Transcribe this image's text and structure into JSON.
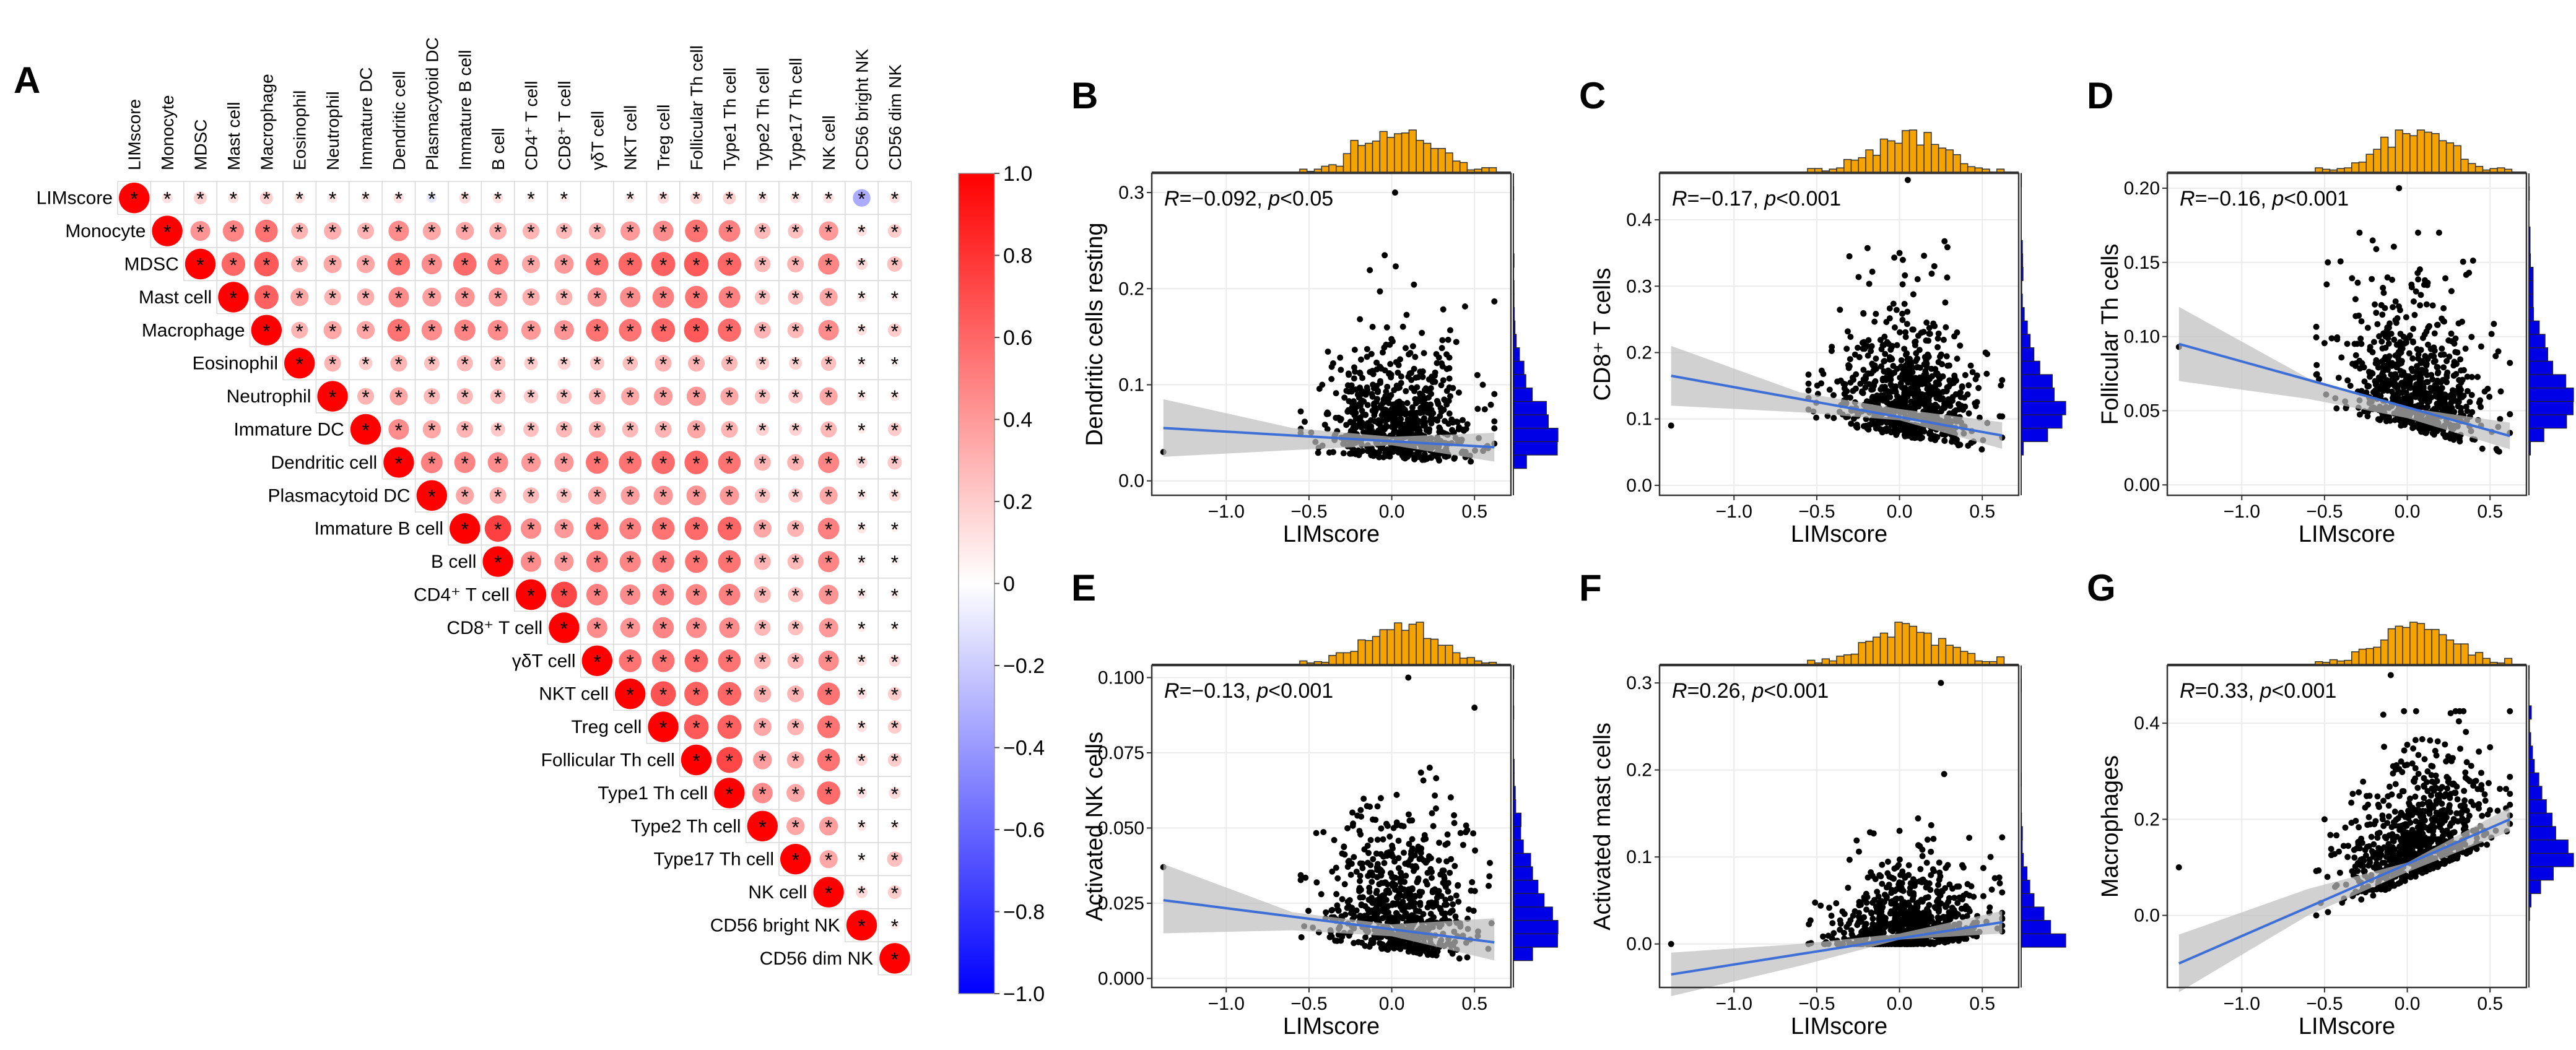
{
  "figure": {
    "panel_labels": [
      "A",
      "B",
      "C",
      "D",
      "E",
      "F",
      "G"
    ]
  },
  "chart_data": [
    {
      "panel": "A",
      "type": "heatmap",
      "variables": [
        "LIMscore",
        "Monocyte",
        "MDSC",
        "Mast cell",
        "Macrophage",
        "Eosinophil",
        "Neutrophil",
        "Immature DC",
        "Dendritic cell",
        "Plasmacytoid DC",
        "Immature B cell",
        "B cell",
        "CD4⁺ T cell",
        "CD8⁺ T cell",
        "γδT cell",
        "NKT cell",
        "Treg cell",
        "Follicular Th cell",
        "Type1 Th cell",
        "Type2 Th cell",
        "Type17 Th cell",
        "NK cell",
        "CD56 bright NK",
        "CD56 dim NK"
      ],
      "rows_upper": [
        [
          1.0,
          0.12,
          0.18,
          0.12,
          0.18,
          0.12,
          0.1,
          0.1,
          0.12,
          -0.1,
          0.14,
          0.12,
          0.08,
          0.08,
          0.0,
          0.1,
          0.14,
          0.16,
          0.18,
          0.12,
          0.12,
          0.12,
          -0.33,
          0.12
        ],
        [
          1.0,
          0.42,
          0.48,
          0.55,
          0.3,
          0.32,
          0.3,
          0.45,
          0.35,
          0.35,
          0.32,
          0.3,
          0.28,
          0.3,
          0.4,
          0.45,
          0.55,
          0.5,
          0.28,
          0.25,
          0.4,
          0.12,
          0.2
        ],
        [
          1.0,
          0.6,
          0.65,
          0.3,
          0.35,
          0.35,
          0.55,
          0.45,
          0.58,
          0.48,
          0.35,
          0.4,
          0.55,
          0.6,
          0.62,
          0.65,
          0.6,
          0.28,
          0.3,
          0.48,
          0.15,
          0.25
        ],
        [
          1.0,
          0.62,
          0.35,
          0.3,
          0.32,
          0.45,
          0.38,
          0.42,
          0.38,
          0.32,
          0.3,
          0.4,
          0.45,
          0.5,
          0.55,
          0.5,
          0.25,
          0.25,
          0.35,
          0.1,
          0.08
        ],
        [
          1.0,
          0.3,
          0.35,
          0.35,
          0.55,
          0.45,
          0.48,
          0.45,
          0.4,
          0.42,
          0.55,
          0.55,
          0.6,
          0.65,
          0.58,
          0.3,
          0.28,
          0.45,
          0.12,
          0.2
        ],
        [
          1.0,
          0.3,
          0.2,
          0.3,
          0.25,
          0.28,
          0.25,
          0.2,
          0.18,
          0.22,
          0.25,
          0.3,
          0.3,
          0.28,
          0.2,
          0.18,
          0.25,
          0.08,
          0.06
        ],
        [
          1.0,
          0.3,
          0.35,
          0.28,
          0.28,
          0.25,
          0.22,
          0.25,
          0.3,
          0.35,
          0.38,
          0.4,
          0.35,
          0.25,
          0.22,
          0.35,
          0.1,
          0.1
        ],
        [
          1.0,
          0.45,
          0.35,
          0.3,
          0.22,
          0.25,
          0.28,
          0.3,
          0.28,
          0.3,
          0.35,
          0.3,
          0.18,
          0.18,
          0.28,
          0.08,
          0.2
        ],
        [
          1.0,
          0.5,
          0.48,
          0.45,
          0.4,
          0.4,
          0.55,
          0.55,
          0.58,
          0.6,
          0.55,
          0.3,
          0.3,
          0.48,
          0.15,
          0.22
        ],
        [
          1.0,
          0.35,
          0.3,
          0.28,
          0.25,
          0.35,
          0.38,
          0.4,
          0.42,
          0.4,
          0.25,
          0.22,
          0.35,
          0.1,
          0.15
        ],
        [
          1.0,
          0.75,
          0.45,
          0.4,
          0.55,
          0.5,
          0.55,
          0.58,
          0.6,
          0.35,
          0.3,
          0.5,
          0.1,
          0.06
        ],
        [
          1.0,
          0.45,
          0.4,
          0.5,
          0.48,
          0.52,
          0.55,
          0.55,
          0.3,
          0.28,
          0.48,
          0.08,
          0.06
        ],
        [
          1.0,
          0.72,
          0.5,
          0.45,
          0.5,
          0.48,
          0.5,
          0.3,
          0.25,
          0.42,
          0.1,
          0.08
        ],
        [
          1.0,
          0.45,
          0.42,
          0.48,
          0.45,
          0.45,
          0.28,
          0.25,
          0.4,
          0.08,
          0.06
        ],
        [
          1.0,
          0.55,
          0.55,
          0.58,
          0.55,
          0.3,
          0.28,
          0.45,
          0.12,
          0.15
        ],
        [
          1.0,
          0.68,
          0.62,
          0.6,
          0.32,
          0.3,
          0.55,
          0.12,
          0.2
        ],
        [
          1.0,
          0.65,
          0.62,
          0.35,
          0.3,
          0.55,
          0.12,
          0.2
        ],
        [
          1.0,
          0.72,
          0.38,
          0.32,
          0.55,
          0.15,
          0.2
        ],
        [
          1.0,
          0.45,
          0.35,
          0.58,
          0.12,
          0.15
        ],
        [
          1.0,
          0.35,
          0.38,
          0.1,
          0.08
        ],
        [
          1.0,
          0.35,
          0.06,
          0.25
        ],
        [
          1.0,
          0.15,
          0.2
        ],
        [
          1.0,
          0.08
        ],
        [
          1.0
        ]
      ],
      "cell_marker": "*",
      "color_scale": {
        "low": "#0000FF",
        "mid": "#FFFFFF",
        "high": "#FF0000"
      },
      "colorbar_ticks": [
        "1.0",
        "0.8",
        "0.6",
        "0.4",
        "0.2",
        "0",
        "−0.2",
        "−0.4",
        "−0.6",
        "−0.8",
        "−1.0"
      ],
      "colorbar_range": [
        -1.0,
        1.0
      ]
    },
    {
      "panel": "B",
      "type": "scatter",
      "xlabel": "LIMscore",
      "ylabel": "Dendritic cells resting",
      "annotation": {
        "r_symbol": "R",
        "rest": "=−0.092, ",
        "p_symbol": "p",
        "p_rest": "<0.05"
      },
      "xlim": [
        -1.45,
        0.72
      ],
      "ylim": [
        -0.015,
        0.32
      ],
      "xticks": [
        -1.0,
        -0.5,
        0.0,
        0.5
      ],
      "xtick_labels": [
        "−1.0",
        "−0.5",
        "0.0",
        "0.5"
      ],
      "yticks": [
        0.0,
        0.1,
        0.2,
        0.3
      ],
      "ytick_labels": [
        "0.0",
        "0.1",
        "0.2",
        "0.3"
      ],
      "fit_line": {
        "x": [
          -1.38,
          0.62
        ],
        "y": [
          0.055,
          0.035
        ]
      },
      "ci_band": {
        "x": [
          -1.38,
          -0.6,
          0.0,
          0.62
        ],
        "upper": [
          0.085,
          0.055,
          0.046,
          0.05
        ],
        "lower": [
          0.025,
          0.032,
          0.037,
          0.02
        ]
      },
      "y_min": 0.0,
      "y_max": 0.3,
      "y_typical": 0.04,
      "y_spread": 0.05,
      "n_points": 700,
      "outliers": [
        {
          "x": -1.38,
          "y": 0.03
        },
        {
          "x": 0.02,
          "y": 0.3
        },
        {
          "x": -0.42,
          "y": 0.1
        },
        {
          "x": 0.55,
          "y": 0.1
        }
      ]
    },
    {
      "panel": "C",
      "type": "scatter",
      "xlabel": "LIMscore",
      "ylabel": "CD8⁺ T cells",
      "annotation": {
        "r_symbol": "R",
        "rest": "=−0.17, ",
        "p_symbol": "p",
        "p_rest": "<0.001"
      },
      "xlim": [
        -1.45,
        0.72
      ],
      "ylim": [
        -0.015,
        0.47
      ],
      "xticks": [
        -1.0,
        -0.5,
        0.0,
        0.5
      ],
      "xtick_labels": [
        "−1.0",
        "−0.5",
        "0.0",
        "0.5"
      ],
      "yticks": [
        0.0,
        0.1,
        0.2,
        0.3,
        0.4
      ],
      "ytick_labels": [
        "0.0",
        "0.1",
        "0.2",
        "0.3",
        "0.4"
      ],
      "fit_line": {
        "x": [
          -1.38,
          0.62
        ],
        "y": [
          0.165,
          0.075
        ]
      },
      "ci_band": {
        "x": [
          -1.38,
          -0.6,
          0.0,
          0.62
        ],
        "upper": [
          0.21,
          0.14,
          0.115,
          0.095
        ],
        "lower": [
          0.12,
          0.11,
          0.098,
          0.055
        ]
      },
      "y_min": 0.0,
      "y_max": 0.46,
      "y_typical": 0.09,
      "y_spread": 0.08,
      "n_points": 750,
      "outliers": [
        {
          "x": -1.38,
          "y": 0.09
        },
        {
          "x": 0.05,
          "y": 0.46
        },
        {
          "x": 0.0,
          "y": 0.35
        },
        {
          "x": 0.52,
          "y": 0.2
        }
      ]
    },
    {
      "panel": "D",
      "type": "scatter",
      "xlabel": "LIMscore",
      "ylabel": "Follicular Th cells",
      "annotation": {
        "r_symbol": "R",
        "rest": "=−0.16, ",
        "p_symbol": "p",
        "p_rest": "<0.001"
      },
      "xlim": [
        -1.45,
        0.72
      ],
      "ylim": [
        -0.007,
        0.21
      ],
      "xticks": [
        -1.0,
        -0.5,
        0.0,
        0.5
      ],
      "xtick_labels": [
        "−1.0",
        "−0.5",
        "0.0",
        "0.5"
      ],
      "yticks": [
        0.0,
        0.05,
        0.1,
        0.15,
        0.2
      ],
      "ytick_labels": [
        "0.00",
        "0.05",
        "0.10",
        "0.15",
        "0.20"
      ],
      "fit_line": {
        "x": [
          -1.38,
          0.62
        ],
        "y": [
          0.095,
          0.033
        ]
      },
      "ci_band": {
        "x": [
          -1.38,
          -0.6,
          0.0,
          0.62
        ],
        "upper": [
          0.12,
          0.072,
          0.052,
          0.042
        ],
        "lower": [
          0.07,
          0.058,
          0.045,
          0.024
        ]
      },
      "y_min": 0.0,
      "y_max": 0.2,
      "y_typical": 0.045,
      "y_spread": 0.04,
      "n_points": 700,
      "outliers": [
        {
          "x": -1.38,
          "y": 0.093
        },
        {
          "x": -0.05,
          "y": 0.2
        },
        {
          "x": -0.48,
          "y": 0.15
        },
        {
          "x": 0.55,
          "y": 0.09
        }
      ]
    },
    {
      "panel": "E",
      "type": "scatter",
      "xlabel": "LIMscore",
      "ylabel": "Activated NK cells",
      "annotation": {
        "r_symbol": "R",
        "rest": "=−0.13, ",
        "p_symbol": "p",
        "p_rest": "<0.001"
      },
      "xlim": [
        -1.45,
        0.72
      ],
      "ylim": [
        -0.003,
        0.104
      ],
      "xticks": [
        -1.0,
        -0.5,
        0.0,
        0.5
      ],
      "xtick_labels": [
        "−1.0",
        "−0.5",
        "0.0",
        "0.5"
      ],
      "yticks": [
        0.0,
        0.025,
        0.05,
        0.075,
        0.1
      ],
      "ytick_labels": [
        "0.000",
        "0.025",
        "0.050",
        "0.075",
        "0.100"
      ],
      "fit_line": {
        "x": [
          -1.38,
          0.62
        ],
        "y": [
          0.026,
          0.012
        ]
      },
      "ci_band": {
        "x": [
          -1.38,
          -0.6,
          0.0,
          0.62
        ],
        "upper": [
          0.038,
          0.022,
          0.018,
          0.02
        ],
        "lower": [
          0.015,
          0.016,
          0.014,
          0.006
        ]
      },
      "y_min": 0.0,
      "y_max": 0.1,
      "y_typical": 0.018,
      "y_spread": 0.02,
      "n_points": 700,
      "outliers": [
        {
          "x": -1.38,
          "y": 0.037
        },
        {
          "x": 0.1,
          "y": 0.1
        },
        {
          "x": 0.5,
          "y": 0.09
        },
        {
          "x": -0.4,
          "y": 0.02
        }
      ]
    },
    {
      "panel": "F",
      "type": "scatter",
      "xlabel": "LIMscore",
      "ylabel": "Activated mast cells",
      "annotation": {
        "r_symbol": "R",
        "rest": "=0.26, ",
        "p_symbol": "p",
        "p_rest": "<0.001"
      },
      "xlim": [
        -1.45,
        0.72
      ],
      "ylim": [
        -0.05,
        0.32
      ],
      "xticks": [
        -1.0,
        -0.5,
        0.0,
        0.5
      ],
      "xtick_labels": [
        "−1.0",
        "−0.5",
        "0.0",
        "0.5"
      ],
      "yticks": [
        0.0,
        0.1,
        0.2,
        0.3
      ],
      "ytick_labels": [
        "0.0",
        "0.1",
        "0.2",
        "0.3"
      ],
      "fit_line": {
        "x": [
          -1.38,
          0.62
        ],
        "y": [
          -0.035,
          0.025
        ]
      },
      "ci_band": {
        "x": [
          -1.38,
          -0.6,
          0.0,
          0.62
        ],
        "upper": [
          -0.01,
          0.0,
          0.012,
          0.038
        ],
        "lower": [
          -0.06,
          -0.025,
          0.005,
          0.012
        ]
      },
      "y_min": 0.0,
      "y_max": 0.3,
      "y_typical": 0.0,
      "y_spread": 0.04,
      "n_points": 700,
      "outliers": [
        {
          "x": -1.38,
          "y": 0.0
        },
        {
          "x": 0.25,
          "y": 0.3
        },
        {
          "x": 0.55,
          "y": 0.1
        },
        {
          "x": 0.0,
          "y": 0.13
        }
      ]
    },
    {
      "panel": "G",
      "type": "scatter",
      "xlabel": "LIMscore",
      "ylabel": "Macrophages",
      "annotation": {
        "r_symbol": "R",
        "rest": "=0.33, ",
        "p_symbol": "p",
        "p_rest": "<0.001"
      },
      "xlim": [
        -1.45,
        0.72
      ],
      "ylim": [
        -0.15,
        0.52
      ],
      "xticks": [
        -1.0,
        -0.5,
        0.0,
        0.5
      ],
      "xtick_labels": [
        "−1.0",
        "−0.5",
        "0.0",
        "0.5"
      ],
      "yticks": [
        0.0,
        0.2,
        0.4
      ],
      "ytick_labels": [
        "0.0",
        "0.2",
        "0.4"
      ],
      "fit_line": {
        "x": [
          -1.38,
          0.62
        ],
        "y": [
          -0.1,
          0.2
        ]
      },
      "ci_band": {
        "x": [
          -1.38,
          -0.6,
          0.0,
          0.62
        ],
        "upper": [
          -0.04,
          0.055,
          0.11,
          0.225
        ],
        "lower": [
          -0.16,
          0.0,
          0.09,
          0.175
        ]
      },
      "y_min": 0.0,
      "y_max": 0.5,
      "y_typical": 0.1,
      "y_spread": 0.1,
      "n_points": 750,
      "outliers": [
        {
          "x": -1.38,
          "y": 0.1
        },
        {
          "x": -0.1,
          "y": 0.5
        },
        {
          "x": 0.5,
          "y": 0.35
        },
        {
          "x": -0.5,
          "y": 0.2
        }
      ]
    }
  ],
  "colors": {
    "scatter_points": "#000000",
    "fit_line": "#3d6fd6",
    "ci_band": "#bdbdbd",
    "top_histogram": "#f5a300",
    "side_histogram": "#0000e6",
    "panel_border": "#333333",
    "gridline": "#ebebeb"
  }
}
